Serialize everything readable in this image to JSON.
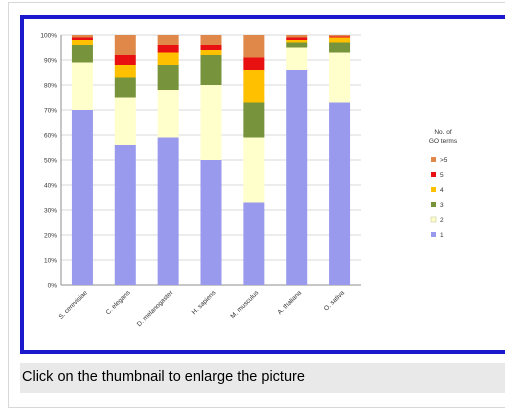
{
  "caption": "Click on the thumbnail to enlarge the picture",
  "chart_data": {
    "type": "bar",
    "stacked": true,
    "categories": [
      "S. cerevisiae",
      "C. elegans",
      "D. melanogaster",
      "H. sapiens",
      "M. musculus",
      "A. thaliana",
      "O. sativa"
    ],
    "series": [
      {
        "name": "1",
        "color": "#9999ee",
        "values": [
          70,
          56,
          59,
          50,
          33,
          86,
          73
        ]
      },
      {
        "name": "2",
        "color": "#ffffcc",
        "values": [
          19,
          19,
          19,
          30,
          26,
          9,
          20
        ]
      },
      {
        "name": "3",
        "color": "#77933c",
        "values": [
          7,
          8,
          10,
          12,
          14,
          2,
          4
        ]
      },
      {
        "name": "4",
        "color": "#ffc000",
        "values": [
          2,
          5,
          5,
          2,
          13,
          1,
          2
        ]
      },
      {
        "name": "5",
        "color": "#e81010",
        "values": [
          1,
          4,
          3,
          2,
          5,
          1,
          0.5
        ]
      },
      {
        "name": ">5",
        "color": "#e0884a",
        "values": [
          1,
          8,
          4,
          4,
          9,
          1,
          0.5
        ]
      }
    ],
    "yticks": [
      "0%",
      "10%",
      "20%",
      "30%",
      "40%",
      "50%",
      "60%",
      "70%",
      "80%",
      "90%",
      "100%"
    ],
    "ylim": [
      0,
      100
    ],
    "legend": {
      "title": "No. of GO terms",
      "placement": "right"
    },
    "grid": true
  }
}
